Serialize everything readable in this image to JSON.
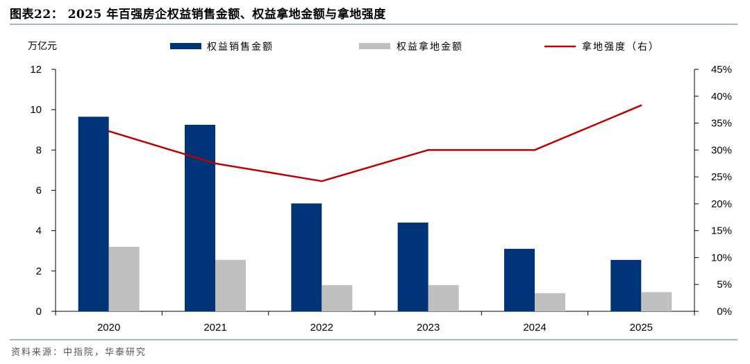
{
  "figure": {
    "title": "图表22：  2025 年百强房企权益销售金额、权益拿地金额与拿地强度",
    "source": "资料来源：中指院，华泰研究"
  },
  "chart_data": {
    "type": "bar",
    "categories": [
      "2020",
      "2021",
      "2022",
      "2023",
      "2024",
      "2025"
    ],
    "y_left": {
      "label": "万亿元",
      "ylim": [
        0,
        12
      ],
      "ticks": [
        "0",
        "2",
        "4",
        "6",
        "8",
        "10",
        "12"
      ]
    },
    "y_right": {
      "label": "",
      "ylim": [
        0,
        45
      ],
      "ticks": [
        "0%",
        "5%",
        "10%",
        "15%",
        "20%",
        "25%",
        "30%",
        "35%",
        "40%",
        "45%"
      ]
    },
    "series": [
      {
        "name": "权益销售金额",
        "type": "bar",
        "axis": "left",
        "color": "#003478",
        "values": [
          9.65,
          9.25,
          5.35,
          4.4,
          3.1,
          2.55
        ]
      },
      {
        "name": "权益拿地金额",
        "type": "bar",
        "axis": "left",
        "color": "#c0c0c0",
        "values": [
          3.2,
          2.55,
          1.3,
          1.3,
          0.9,
          0.95
        ]
      },
      {
        "name": "拿地强度（右）",
        "type": "line",
        "axis": "right",
        "color": "#c00000",
        "values": [
          33.5,
          27.5,
          24.2,
          30.0,
          30.0,
          38.3
        ]
      }
    ],
    "legend_position": "top",
    "grid": false
  }
}
